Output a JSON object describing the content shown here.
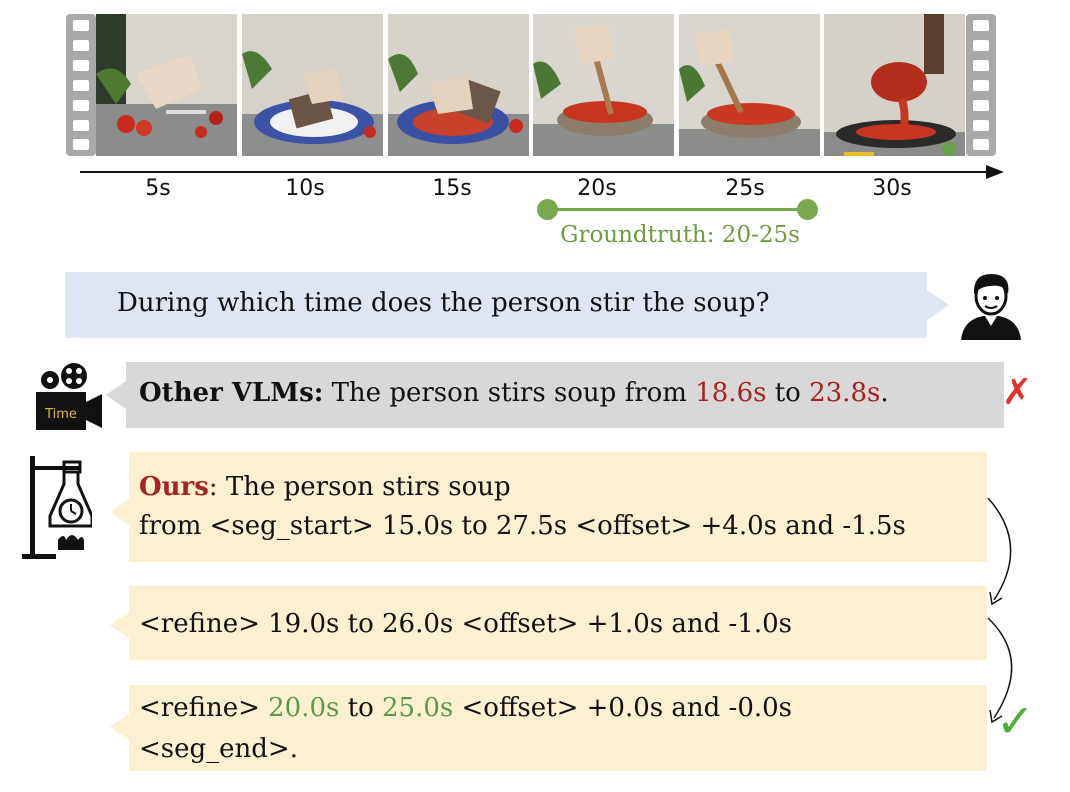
{
  "timeline": {
    "ticks": [
      "5s",
      "10s",
      "15s",
      "20s",
      "25s",
      "30s"
    ],
    "groundtruth_label": "Groundtruth: 20-25s"
  },
  "question": {
    "text": "During which time does the person stir the soup?"
  },
  "other_answer": {
    "label": "Other VLMs:",
    "text_before": " The person stirs soup from ",
    "start": "18.6s",
    "middle": " to ",
    "end": "23.8s",
    "text_after": ".",
    "verdict": "✗"
  },
  "ours": {
    "label": "Ours",
    "line1_rest": ": The person stirs soup",
    "line2": "from <seg_start> 15.0s to 27.5s <offset> +4.0s and -1.5s",
    "refine1": "<refine> 19.0s to 26.0s <offset> +1.0s and -1.0s",
    "refine2_prefix": "<refine> ",
    "refine2_start": "20.0s",
    "refine2_mid": " to ",
    "refine2_end": "25.0s",
    "refine2_suffix": " <offset> +0.0s and -0.0s",
    "refine2_line2": "<seg_end>.",
    "verdict": "✓"
  },
  "icons": {
    "time_camera_caption": "Time"
  },
  "colors": {
    "groundtruth": "#7aa84d",
    "wrong": "#e0312b",
    "correct": "#4fae3a",
    "highlight_red": "#a52323",
    "highlight_green": "#5a9a4a"
  }
}
